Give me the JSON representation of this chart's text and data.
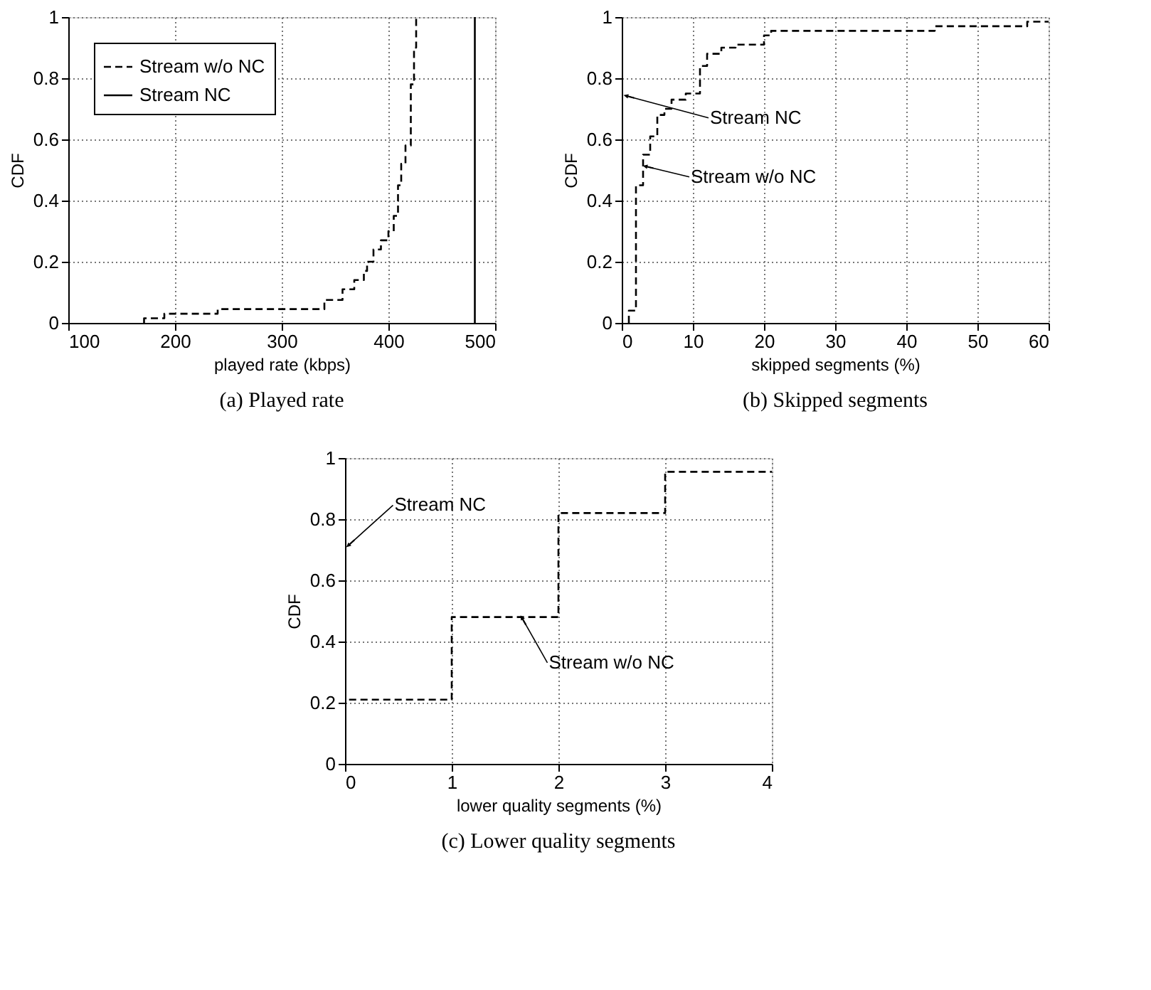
{
  "chart_data": [
    {
      "type": "step",
      "title": "(a) Played rate",
      "xlabel": "played rate (kbps)",
      "ylabel": "CDF",
      "xlim": [
        100,
        500
      ],
      "xticks": [
        100,
        200,
        300,
        400,
        500
      ],
      "ylim": [
        0,
        1
      ],
      "yticks": [
        0,
        0.2,
        0.4,
        0.6,
        0.8,
        1
      ],
      "grid": true,
      "legend": "top left",
      "series": [
        {
          "name": "Stream w/o NC",
          "color": "#000000",
          "line_style": "dashed",
          "x": [
            171,
            171,
            190,
            240,
            340,
            357,
            368,
            377,
            380,
            386,
            393,
            400,
            405,
            409,
            412,
            416,
            421,
            424,
            426
          ],
          "values": [
            0,
            0.015,
            0.03,
            0.045,
            0.075,
            0.11,
            0.14,
            0.17,
            0.2,
            0.24,
            0.27,
            0.3,
            0.35,
            0.45,
            0.52,
            0.58,
            0.78,
            0.9,
            1
          ]
        },
        {
          "name": "Stream NC",
          "color": "#000000",
          "line_style": "solid",
          "x": [
            481,
            481
          ],
          "values": [
            0,
            1
          ]
        }
      ]
    },
    {
      "type": "step",
      "title": "(b) Skipped segments",
      "xlabel": "skipped segments (%)",
      "ylabel": "CDF",
      "xlim": [
        0,
        60
      ],
      "xticks": [
        0,
        10,
        20,
        30,
        40,
        50,
        60
      ],
      "ylim": [
        0,
        1
      ],
      "yticks": [
        0,
        0.2,
        0.4,
        0.6,
        0.8,
        1
      ],
      "grid": true,
      "series": [
        {
          "color": "#000000",
          "line_style": "dashed",
          "x": [
            1,
            1,
            2,
            3,
            4,
            5,
            6,
            7,
            9,
            11,
            12,
            14,
            16,
            20,
            21,
            44,
            57,
            60
          ],
          "values": [
            0,
            0.04,
            0.45,
            0.55,
            0.61,
            0.68,
            0.7,
            0.73,
            0.75,
            0.84,
            0.88,
            0.9,
            0.91,
            0.94,
            0.955,
            0.97,
            0.985,
            0.985
          ]
        }
      ],
      "annotations": [
        {
          "text": "Stream NC",
          "x": 1,
          "y": 0.74
        },
        {
          "text": "Stream w/o NC",
          "x": 3.7,
          "y": 0.51
        }
      ]
    },
    {
      "type": "step",
      "title": "(c) Lower quality segments",
      "xlabel": "lower quality segments (%)",
      "ylabel": "CDF",
      "xlim": [
        0,
        4
      ],
      "xticks": [
        0,
        1,
        2,
        3,
        4
      ],
      "ylim": [
        0,
        1
      ],
      "yticks": [
        0,
        0.2,
        0.4,
        0.6,
        0.8,
        1
      ],
      "grid": true,
      "series": [
        {
          "color": "#000000",
          "line_style": "dashed",
          "x": [
            0,
            0,
            1,
            2,
            3,
            4
          ],
          "values": [
            0,
            0.21,
            0.48,
            0.82,
            0.955,
            0.955
          ]
        }
      ],
      "annotations": [
        {
          "text": "Stream NC",
          "x": 0.05,
          "y": 0.72
        },
        {
          "text": "Stream w/o NC",
          "x": 1.67,
          "y": 0.47
        }
      ]
    }
  ]
}
